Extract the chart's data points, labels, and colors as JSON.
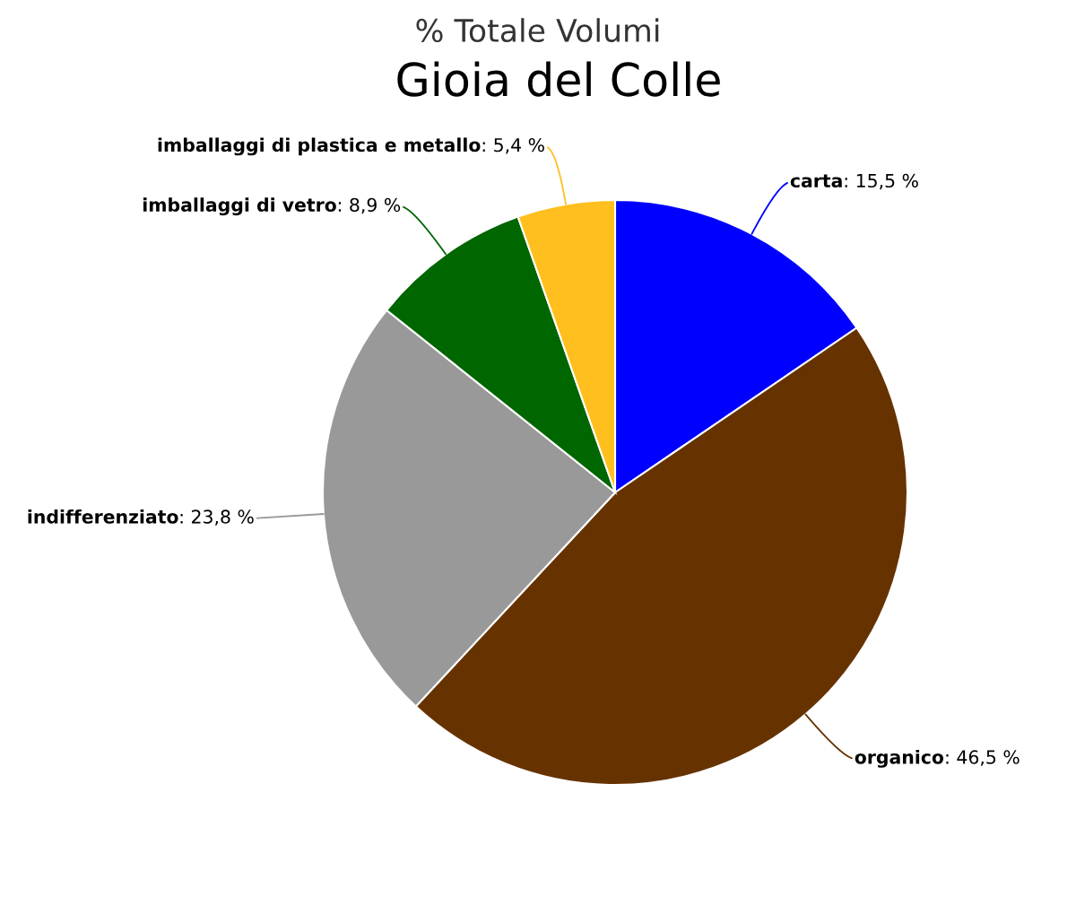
{
  "chart_data": {
    "type": "pie",
    "title": "% Totale Volumi",
    "subtitle": "Gioia del Colle",
    "categories": [
      "carta",
      "organico",
      "indifferenziato",
      "imballaggi di vetro",
      "imballaggi di plastica e metallo"
    ],
    "values": [
      15.5,
      46.5,
      23.8,
      8.9,
      5.4
    ],
    "colors": [
      "#0000ff",
      "#663300",
      "#999999",
      "#006600",
      "#ffbf1e"
    ],
    "value_labels": [
      ": 15,5 %",
      ": 46,5 %",
      ": 23,8 %",
      ": 8,9 %",
      ": 5,4 %"
    ]
  }
}
